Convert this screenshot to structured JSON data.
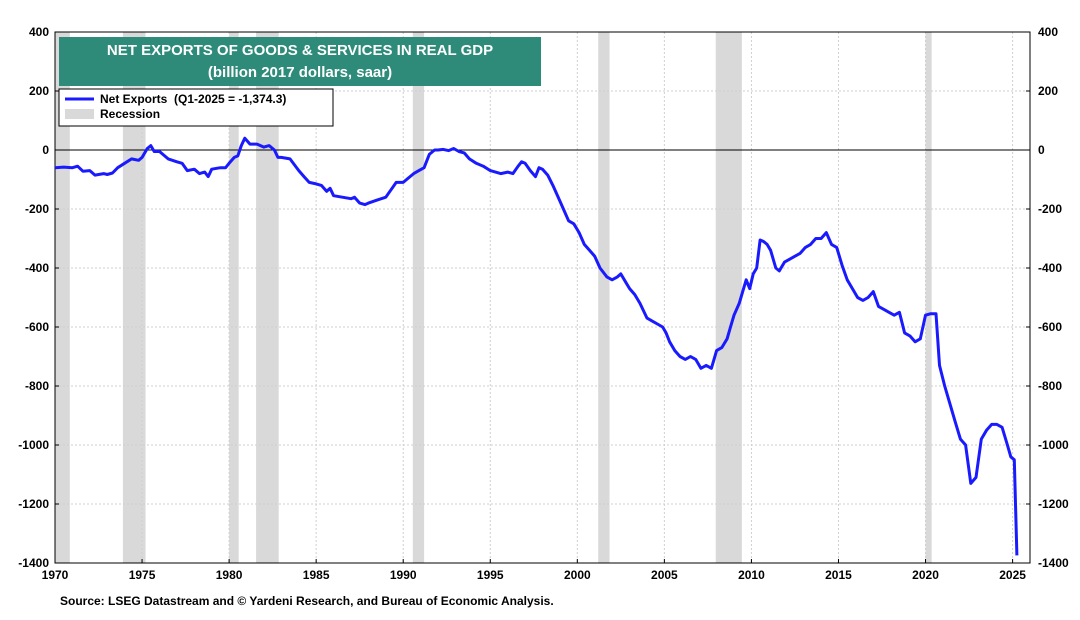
{
  "chart_data": {
    "type": "line",
    "title": "NET EXPORTS OF GOODS & SERVICES IN REAL GDP",
    "subtitle": "(billion 2017 dollars, saar)",
    "source": "Source: LSEG Datastream and © Yardeni Research, and Bureau of Economic Analysis.",
    "colors": {
      "series": "#1a1aff",
      "recession": "#d9d9d9",
      "title_box": "#2e8b7a",
      "title_text": "#ffffff",
      "grid": "#cfcfcf",
      "zero_line": "#000000"
    },
    "xlim": [
      1970,
      2026
    ],
    "ylim": [
      -1400,
      400
    ],
    "x_ticks": [
      1970,
      1975,
      1980,
      1985,
      1990,
      1995,
      2000,
      2005,
      2010,
      2015,
      2020,
      2025
    ],
    "y_ticks": [
      400,
      200,
      0,
      -200,
      -400,
      -600,
      -800,
      -1000,
      -1200,
      -1400
    ],
    "grid": true,
    "legend": {
      "placement": "top-left",
      "entries": [
        {
          "label": "Net Exports  (Q1-2025 = -1,374.3)",
          "kind": "line"
        },
        {
          "label": "Recession",
          "kind": "swatch"
        }
      ]
    },
    "recessions": [
      [
        1969.9,
        1970.85
      ],
      [
        1973.9,
        1975.2
      ],
      [
        1980.0,
        1980.55
      ],
      [
        1981.55,
        1982.85
      ],
      [
        1990.55,
        1991.2
      ],
      [
        2001.2,
        2001.85
      ],
      [
        2007.95,
        2009.45
      ],
      [
        2020.0,
        2020.35
      ]
    ],
    "series": [
      {
        "name": "Net Exports",
        "points": [
          [
            1970.0,
            -60
          ],
          [
            1970.5,
            -58
          ],
          [
            1971.0,
            -60
          ],
          [
            1971.3,
            -55
          ],
          [
            1971.6,
            -72
          ],
          [
            1972.0,
            -70
          ],
          [
            1972.3,
            -85
          ],
          [
            1972.8,
            -80
          ],
          [
            1973.0,
            -83
          ],
          [
            1973.3,
            -78
          ],
          [
            1973.6,
            -60
          ],
          [
            1974.0,
            -45
          ],
          [
            1974.4,
            -30
          ],
          [
            1974.8,
            -35
          ],
          [
            1975.0,
            -25
          ],
          [
            1975.3,
            5
          ],
          [
            1975.5,
            15
          ],
          [
            1975.7,
            -5
          ],
          [
            1976.0,
            -5
          ],
          [
            1976.5,
            -30
          ],
          [
            1977.0,
            -40
          ],
          [
            1977.3,
            -45
          ],
          [
            1977.6,
            -70
          ],
          [
            1978.0,
            -65
          ],
          [
            1978.3,
            -80
          ],
          [
            1978.6,
            -75
          ],
          [
            1978.8,
            -90
          ],
          [
            1979.0,
            -65
          ],
          [
            1979.5,
            -60
          ],
          [
            1979.8,
            -60
          ],
          [
            1980.0,
            -45
          ],
          [
            1980.3,
            -25
          ],
          [
            1980.5,
            -20
          ],
          [
            1980.7,
            15
          ],
          [
            1980.9,
            40
          ],
          [
            1981.2,
            20
          ],
          [
            1981.6,
            20
          ],
          [
            1982.0,
            10
          ],
          [
            1982.3,
            15
          ],
          [
            1982.6,
            0
          ],
          [
            1982.8,
            -25
          ],
          [
            1983.0,
            -25
          ],
          [
            1983.5,
            -30
          ],
          [
            1984.0,
            -70
          ],
          [
            1984.3,
            -90
          ],
          [
            1984.6,
            -110
          ],
          [
            1985.0,
            -115
          ],
          [
            1985.3,
            -120
          ],
          [
            1985.6,
            -140
          ],
          [
            1985.8,
            -130
          ],
          [
            1986.0,
            -155
          ],
          [
            1986.5,
            -160
          ],
          [
            1987.0,
            -165
          ],
          [
            1987.2,
            -160
          ],
          [
            1987.5,
            -180
          ],
          [
            1987.8,
            -185
          ],
          [
            1988.0,
            -180
          ],
          [
            1988.5,
            -170
          ],
          [
            1989.0,
            -160
          ],
          [
            1989.3,
            -135
          ],
          [
            1989.6,
            -110
          ],
          [
            1990.0,
            -110
          ],
          [
            1990.3,
            -95
          ],
          [
            1990.6,
            -80
          ],
          [
            1990.9,
            -70
          ],
          [
            1991.2,
            -60
          ],
          [
            1991.5,
            -15
          ],
          [
            1991.8,
            0
          ],
          [
            1992.0,
            0
          ],
          [
            1992.3,
            2
          ],
          [
            1992.6,
            -2
          ],
          [
            1992.9,
            5
          ],
          [
            1993.2,
            -5
          ],
          [
            1993.5,
            -10
          ],
          [
            1993.8,
            -30
          ],
          [
            1994.2,
            -45
          ],
          [
            1994.6,
            -55
          ],
          [
            1995.0,
            -70
          ],
          [
            1995.3,
            -75
          ],
          [
            1995.6,
            -80
          ],
          [
            1996.0,
            -75
          ],
          [
            1996.3,
            -80
          ],
          [
            1996.6,
            -55
          ],
          [
            1996.8,
            -40
          ],
          [
            1997.0,
            -45
          ],
          [
            1997.3,
            -70
          ],
          [
            1997.6,
            -90
          ],
          [
            1997.8,
            -60
          ],
          [
            1998.0,
            -65
          ],
          [
            1998.3,
            -85
          ],
          [
            1998.6,
            -120
          ],
          [
            1998.9,
            -160
          ],
          [
            1999.2,
            -200
          ],
          [
            1999.5,
            -240
          ],
          [
            1999.8,
            -250
          ],
          [
            2000.1,
            -280
          ],
          [
            2000.4,
            -320
          ],
          [
            2000.7,
            -340
          ],
          [
            2001.0,
            -360
          ],
          [
            2001.3,
            -400
          ],
          [
            2001.7,
            -430
          ],
          [
            2002.0,
            -440
          ],
          [
            2002.3,
            -430
          ],
          [
            2002.5,
            -420
          ],
          [
            2002.8,
            -450
          ],
          [
            2003.0,
            -470
          ],
          [
            2003.3,
            -490
          ],
          [
            2003.6,
            -520
          ],
          [
            2004.0,
            -570
          ],
          [
            2004.3,
            -580
          ],
          [
            2004.6,
            -590
          ],
          [
            2004.9,
            -600
          ],
          [
            2005.1,
            -620
          ],
          [
            2005.3,
            -650
          ],
          [
            2005.6,
            -680
          ],
          [
            2005.9,
            -700
          ],
          [
            2006.2,
            -710
          ],
          [
            2006.5,
            -700
          ],
          [
            2006.8,
            -710
          ],
          [
            2007.1,
            -740
          ],
          [
            2007.4,
            -730
          ],
          [
            2007.7,
            -740
          ],
          [
            2008.0,
            -680
          ],
          [
            2008.3,
            -670
          ],
          [
            2008.6,
            -640
          ],
          [
            2008.8,
            -600
          ],
          [
            2009.0,
            -560
          ],
          [
            2009.3,
            -520
          ],
          [
            2009.5,
            -480
          ],
          [
            2009.7,
            -440
          ],
          [
            2009.9,
            -470
          ],
          [
            2010.1,
            -420
          ],
          [
            2010.3,
            -400
          ],
          [
            2010.5,
            -305
          ],
          [
            2010.7,
            -310
          ],
          [
            2010.9,
            -320
          ],
          [
            2011.1,
            -340
          ],
          [
            2011.4,
            -400
          ],
          [
            2011.6,
            -410
          ],
          [
            2011.9,
            -380
          ],
          [
            2012.2,
            -370
          ],
          [
            2012.5,
            -360
          ],
          [
            2012.8,
            -350
          ],
          [
            2013.1,
            -330
          ],
          [
            2013.4,
            -320
          ],
          [
            2013.7,
            -300
          ],
          [
            2014.0,
            -300
          ],
          [
            2014.3,
            -280
          ],
          [
            2014.6,
            -320
          ],
          [
            2014.9,
            -330
          ],
          [
            2015.2,
            -390
          ],
          [
            2015.5,
            -440
          ],
          [
            2015.8,
            -470
          ],
          [
            2016.1,
            -500
          ],
          [
            2016.4,
            -510
          ],
          [
            2016.7,
            -500
          ],
          [
            2017.0,
            -480
          ],
          [
            2017.3,
            -530
          ],
          [
            2017.6,
            -540
          ],
          [
            2017.9,
            -550
          ],
          [
            2018.2,
            -560
          ],
          [
            2018.5,
            -550
          ],
          [
            2018.8,
            -620
          ],
          [
            2019.1,
            -630
          ],
          [
            2019.4,
            -650
          ],
          [
            2019.7,
            -640
          ],
          [
            2020.0,
            -560
          ],
          [
            2020.3,
            -555
          ],
          [
            2020.6,
            -555
          ],
          [
            2020.8,
            -730
          ],
          [
            2021.1,
            -800
          ],
          [
            2021.4,
            -860
          ],
          [
            2021.7,
            -920
          ],
          [
            2022.0,
            -980
          ],
          [
            2022.3,
            -1000
          ],
          [
            2022.6,
            -1130
          ],
          [
            2022.9,
            -1110
          ],
          [
            2023.2,
            -980
          ],
          [
            2023.5,
            -950
          ],
          [
            2023.8,
            -930
          ],
          [
            2024.1,
            -930
          ],
          [
            2024.4,
            -940
          ],
          [
            2024.7,
            -1000
          ],
          [
            2024.9,
            -1040
          ],
          [
            2025.1,
            -1050
          ],
          [
            2025.25,
            -1374.3
          ]
        ]
      }
    ]
  }
}
